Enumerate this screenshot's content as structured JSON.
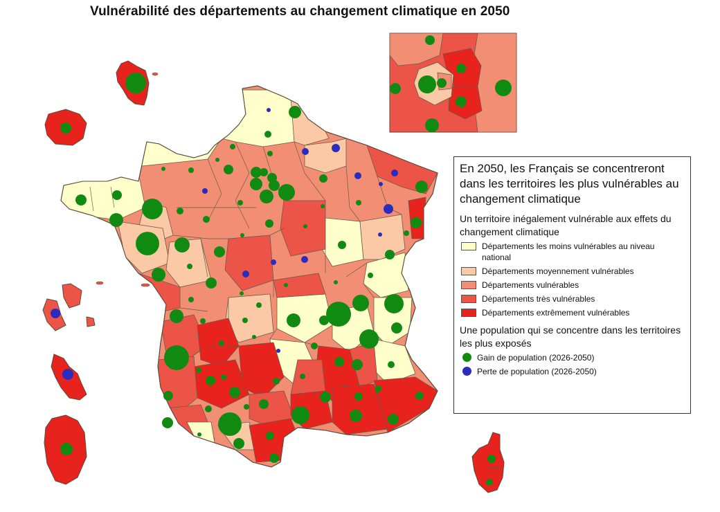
{
  "title": "Vulnérabilité des départements au changement climatique en 2050",
  "legend": {
    "heading": "En 2050, les Français se concentreront dans les territoires les plus vulnérables au changement climatique",
    "section1_title": "Un territoire inégalement vulnérable aux effets du changement climatique",
    "classes": [
      {
        "label": "Départements les moins vulnérables au niveau national",
        "color": "#ffffcc"
      },
      {
        "label": "Départements moyennement vulnérables",
        "color": "#fbc9a5"
      },
      {
        "label": "Départements vulnérables",
        "color": "#f28e74"
      },
      {
        "label": "Départements très vulnérables",
        "color": "#ec5448"
      },
      {
        "label": "Départements extrêmement vulnérables",
        "color": "#e8221c"
      }
    ],
    "section2_title": "Une population qui se concentre dans les territoires les plus exposés",
    "symbols": [
      {
        "label": "Gain de population (2026-2050)",
        "color": "#118a11"
      },
      {
        "label": "Perte de population (2026-2050)",
        "color": "#2b2bbd"
      }
    ]
  },
  "colors": {
    "outline": "#5a4a3a",
    "gain": "#118a11",
    "loss": "#2b2bbd"
  }
}
